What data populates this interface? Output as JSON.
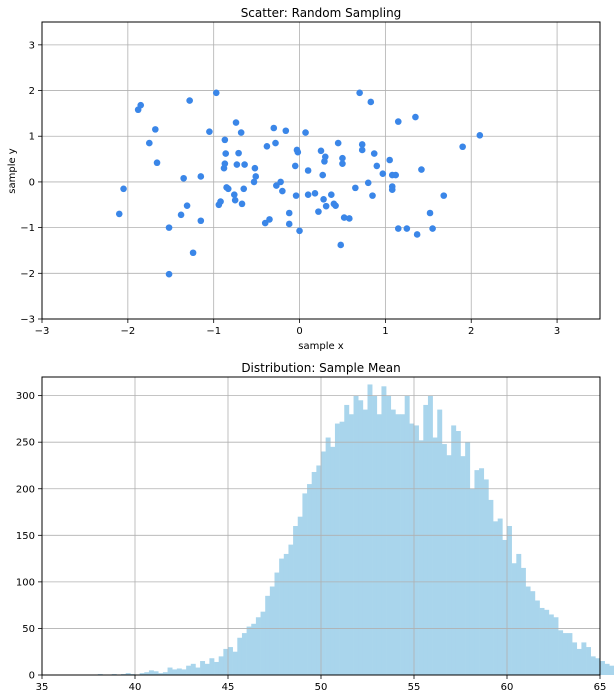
{
  "charts": [
    {
      "type": "scatter",
      "title": "Scatter: Random Sampling",
      "xlabel": "sample x",
      "ylabel": "sample y",
      "xlim": [
        -3,
        3.5
      ],
      "ylim": [
        -3,
        3.5
      ],
      "xticks": [
        -3,
        -2,
        -1,
        0,
        1,
        2,
        3
      ],
      "yticks": [
        -3,
        -2,
        -1,
        0,
        1,
        2,
        3
      ],
      "grid": true,
      "color": "#3a86e8",
      "points": [
        [
          -2.1,
          -0.7
        ],
        [
          -2.05,
          -0.15
        ],
        [
          -1.88,
          1.58
        ],
        [
          -1.85,
          1.68
        ],
        [
          -1.75,
          0.85
        ],
        [
          -1.68,
          1.15
        ],
        [
          -1.66,
          0.42
        ],
        [
          -1.52,
          -1.0
        ],
        [
          -1.52,
          -2.02
        ],
        [
          -1.38,
          -0.72
        ],
        [
          -1.35,
          0.08
        ],
        [
          -1.31,
          -0.52
        ],
        [
          -1.28,
          1.78
        ],
        [
          -1.24,
          -1.55
        ],
        [
          -1.15,
          -0.85
        ],
        [
          -1.15,
          0.12
        ],
        [
          -1.05,
          1.1
        ],
        [
          -0.97,
          1.95
        ],
        [
          -0.94,
          -0.5
        ],
        [
          -0.92,
          -0.43
        ],
        [
          -0.88,
          0.3
        ],
        [
          -0.87,
          0.4
        ],
        [
          -0.87,
          0.92
        ],
        [
          -0.86,
          0.62
        ],
        [
          -0.85,
          -0.12
        ],
        [
          -0.83,
          -0.15
        ],
        [
          -0.76,
          -0.28
        ],
        [
          -0.75,
          -0.4
        ],
        [
          -0.74,
          1.3
        ],
        [
          -0.73,
          0.38
        ],
        [
          -0.71,
          0.63
        ],
        [
          -0.68,
          1.08
        ],
        [
          -0.67,
          -0.48
        ],
        [
          -0.65,
          -0.15
        ],
        [
          -0.64,
          0.38
        ],
        [
          -0.53,
          0.0
        ],
        [
          -0.52,
          0.3
        ],
        [
          -0.51,
          0.12
        ],
        [
          -0.4,
          -0.9
        ],
        [
          -0.38,
          0.78
        ],
        [
          -0.35,
          -0.82
        ],
        [
          -0.3,
          1.18
        ],
        [
          -0.28,
          0.85
        ],
        [
          -0.27,
          -0.08
        ],
        [
          -0.22,
          0.0
        ],
        [
          -0.2,
          -0.2
        ],
        [
          -0.16,
          1.12
        ],
        [
          -0.12,
          -0.68
        ],
        [
          -0.12,
          -0.92
        ],
        [
          -0.05,
          0.35
        ],
        [
          -0.04,
          -0.3
        ],
        [
          -0.03,
          0.7
        ],
        [
          -0.02,
          0.65
        ],
        [
          0.0,
          -1.07
        ],
        [
          0.07,
          1.08
        ],
        [
          0.1,
          0.25
        ],
        [
          0.1,
          -0.28
        ],
        [
          0.18,
          -0.25
        ],
        [
          0.22,
          -0.65
        ],
        [
          0.25,
          0.68
        ],
        [
          0.27,
          0.15
        ],
        [
          0.28,
          -0.38
        ],
        [
          0.29,
          0.45
        ],
        [
          0.3,
          0.55
        ],
        [
          0.31,
          -0.53
        ],
        [
          0.37,
          -0.28
        ],
        [
          0.4,
          -0.48
        ],
        [
          0.42,
          -0.52
        ],
        [
          0.45,
          0.85
        ],
        [
          0.48,
          -1.38
        ],
        [
          0.5,
          0.52
        ],
        [
          0.5,
          0.4
        ],
        [
          0.52,
          -0.78
        ],
        [
          0.58,
          -0.8
        ],
        [
          0.65,
          -0.13
        ],
        [
          0.7,
          1.95
        ],
        [
          0.73,
          0.82
        ],
        [
          0.73,
          0.7
        ],
        [
          0.8,
          -0.02
        ],
        [
          0.83,
          1.75
        ],
        [
          0.85,
          -0.3
        ],
        [
          0.87,
          0.62
        ],
        [
          0.9,
          0.35
        ],
        [
          0.97,
          0.18
        ],
        [
          1.05,
          0.48
        ],
        [
          1.08,
          -0.1
        ],
        [
          1.08,
          -0.17
        ],
        [
          1.08,
          0.15
        ],
        [
          1.12,
          0.15
        ],
        [
          1.15,
          1.32
        ],
        [
          1.15,
          -1.02
        ],
        [
          1.25,
          -1.02
        ],
        [
          1.35,
          1.42
        ],
        [
          1.37,
          -1.15
        ],
        [
          1.42,
          0.27
        ],
        [
          1.52,
          -0.68
        ],
        [
          1.55,
          -1.02
        ],
        [
          1.68,
          -0.3
        ],
        [
          1.9,
          0.77
        ],
        [
          2.1,
          1.02
        ]
      ]
    },
    {
      "type": "bar",
      "title": "Distribution: Sample Mean",
      "xlabel": "",
      "ylabel": "",
      "xlim": [
        35,
        65
      ],
      "ylim": [
        0,
        320
      ],
      "xticks": [
        35,
        40,
        45,
        50,
        55,
        60,
        65
      ],
      "yticks": [
        0,
        50,
        100,
        150,
        200,
        250,
        300
      ],
      "grid": true,
      "color": "#a9d5ec",
      "bin_width": 0.25,
      "bin_start": 37.0,
      "values": [
        0,
        0,
        0,
        0,
        1,
        0,
        0,
        1,
        0,
        1,
        2,
        1,
        0,
        2,
        3,
        5,
        4,
        2,
        3,
        8,
        6,
        7,
        6,
        10,
        12,
        8,
        15,
        12,
        18,
        14,
        20,
        28,
        30,
        25,
        40,
        45,
        52,
        55,
        62,
        68,
        85,
        95,
        110,
        125,
        130,
        140,
        160,
        170,
        195,
        205,
        218,
        225,
        240,
        255,
        245,
        270,
        272,
        290,
        280,
        300,
        295,
        285,
        312,
        300,
        280,
        310,
        300,
        285,
        280,
        280,
        300,
        270,
        268,
        252,
        290,
        300,
        255,
        285,
        248,
        236,
        268,
        262,
        235,
        250,
        200,
        220,
        222,
        210,
        188,
        165,
        168,
        145,
        160,
        120,
        130,
        115,
        95,
        90,
        80,
        72,
        70,
        65,
        62,
        48,
        45,
        45,
        35,
        28,
        35,
        30,
        20,
        18,
        15,
        12,
        10,
        8,
        8,
        6,
        5,
        3,
        3,
        4,
        2,
        1,
        3,
        2,
        1,
        1,
        1,
        0,
        1,
        0
      ]
    }
  ]
}
